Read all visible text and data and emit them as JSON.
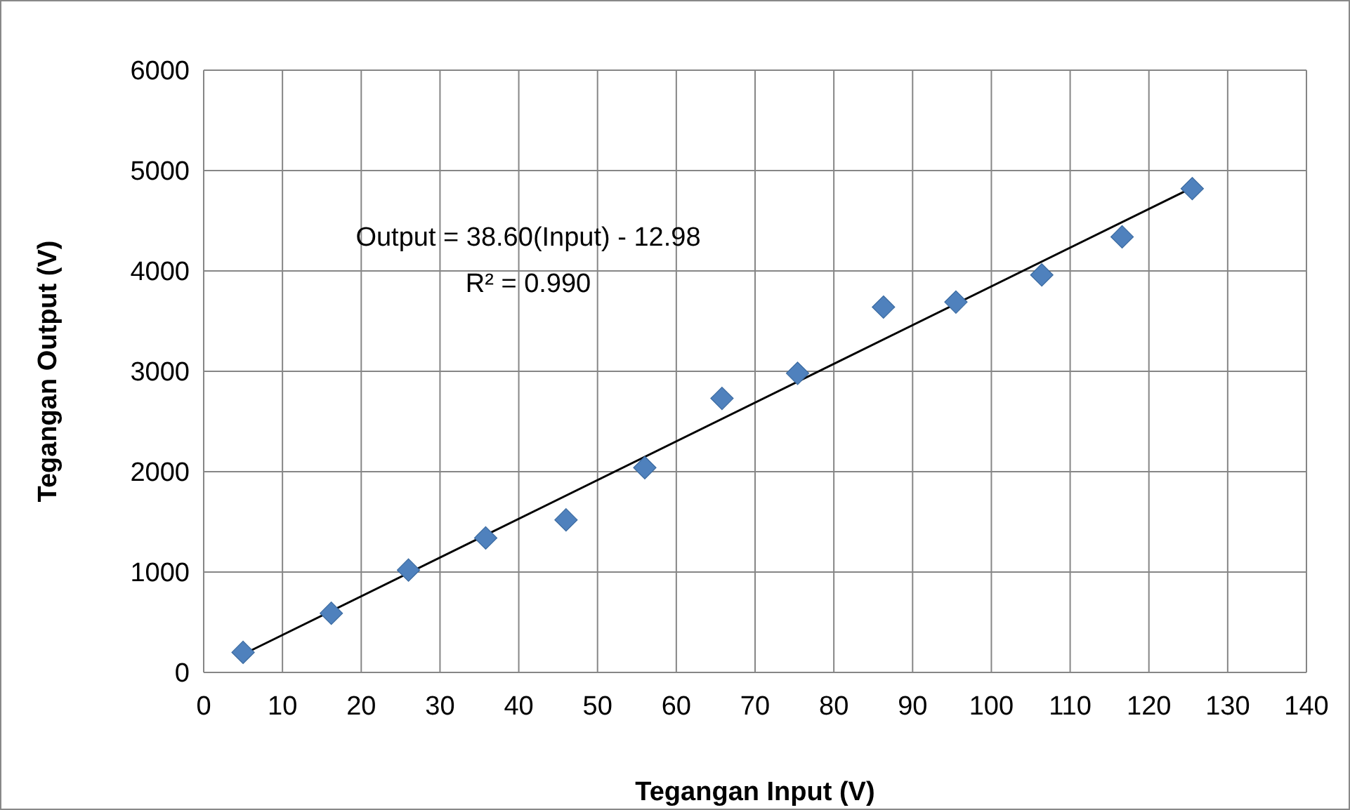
{
  "chart_data": {
    "type": "scatter",
    "xlabel": "Tegangan Input (V)",
    "ylabel": "Tegangan Output (V)",
    "xlim": [
      0,
      140
    ],
    "ylim": [
      0,
      6000
    ],
    "xticks": [
      0,
      10,
      20,
      30,
      40,
      50,
      60,
      70,
      80,
      90,
      100,
      110,
      120,
      130,
      140
    ],
    "yticks": [
      0,
      1000,
      2000,
      3000,
      4000,
      5000,
      6000
    ],
    "grid": true,
    "annotations": [
      "Output = 38.60(Input) - 12.98",
      "R² = 0.990"
    ],
    "series": [
      {
        "color": "#4f81bd",
        "marker": "diamond",
        "x": [
          5,
          16.2,
          26,
          35.8,
          46,
          56,
          65.8,
          75.4,
          86.3,
          95.5,
          106.4,
          116.6,
          125.5
        ],
        "values": [
          200,
          590,
          1020,
          1340,
          1520,
          2040,
          2730,
          2980,
          3640,
          3690,
          3960,
          4340,
          4820
        ]
      },
      {
        "type": "line",
        "color": "#000000",
        "marker": "none",
        "x": [
          5,
          125.5
        ],
        "values": [
          180,
          4830
        ]
      }
    ]
  }
}
